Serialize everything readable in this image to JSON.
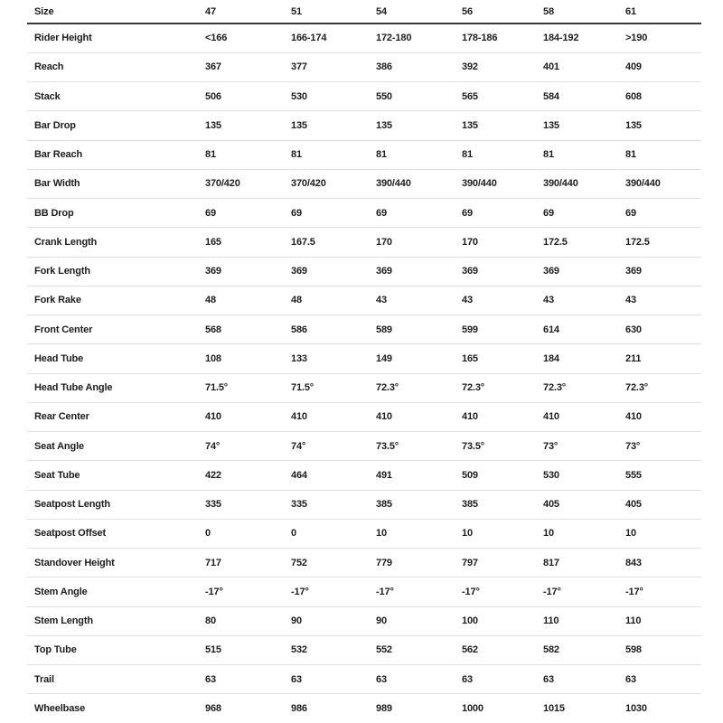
{
  "colors": {
    "background": "#ffffff",
    "text": "#1d1d1d",
    "header_rule": "#383838",
    "row_rule": "#e1e1e1"
  },
  "chart_data": {
    "type": "table",
    "columns": [
      "Size",
      "47",
      "51",
      "54",
      "56",
      "58",
      "61"
    ],
    "rows": [
      {
        "label": "Rider Height",
        "values": [
          "<166",
          "166-174",
          "172-180",
          "178-186",
          "184-192",
          ">190"
        ]
      },
      {
        "label": "Reach",
        "values": [
          "367",
          "377",
          "386",
          "392",
          "401",
          "409"
        ]
      },
      {
        "label": "Stack",
        "values": [
          "506",
          "530",
          "550",
          "565",
          "584",
          "608"
        ]
      },
      {
        "label": "Bar Drop",
        "values": [
          "135",
          "135",
          "135",
          "135",
          "135",
          "135"
        ]
      },
      {
        "label": "Bar Reach",
        "values": [
          "81",
          "81",
          "81",
          "81",
          "81",
          "81"
        ]
      },
      {
        "label": "Bar Width",
        "values": [
          "370/420",
          "370/420",
          "390/440",
          "390/440",
          "390/440",
          "390/440"
        ]
      },
      {
        "label": "BB Drop",
        "values": [
          "69",
          "69",
          "69",
          "69",
          "69",
          "69"
        ]
      },
      {
        "label": "Crank Length",
        "values": [
          "165",
          "167.5",
          "170",
          "170",
          "172.5",
          "172.5"
        ]
      },
      {
        "label": "Fork Length",
        "values": [
          "369",
          "369",
          "369",
          "369",
          "369",
          "369"
        ]
      },
      {
        "label": "Fork Rake",
        "values": [
          "48",
          "48",
          "43",
          "43",
          "43",
          "43"
        ]
      },
      {
        "label": "Front Center",
        "values": [
          "568",
          "586",
          "589",
          "599",
          "614",
          "630"
        ]
      },
      {
        "label": "Head Tube",
        "values": [
          "108",
          "133",
          "149",
          "165",
          "184",
          "211"
        ]
      },
      {
        "label": "Head Tube Angle",
        "values": [
          "71.5°",
          "71.5°",
          "72.3°",
          "72.3°",
          "72.3°",
          "72.3°"
        ]
      },
      {
        "label": "Rear Center",
        "values": [
          "410",
          "410",
          "410",
          "410",
          "410",
          "410"
        ]
      },
      {
        "label": "Seat Angle",
        "values": [
          "74°",
          "74°",
          "73.5°",
          "73.5°",
          "73°",
          "73°"
        ]
      },
      {
        "label": "Seat Tube",
        "values": [
          "422",
          "464",
          "491",
          "509",
          "530",
          "555"
        ]
      },
      {
        "label": "Seatpost Length",
        "values": [
          "335",
          "335",
          "385",
          "385",
          "405",
          "405"
        ]
      },
      {
        "label": "Seatpost Offset",
        "values": [
          "0",
          "0",
          "10",
          "10",
          "10",
          "10"
        ]
      },
      {
        "label": "Standover Height",
        "values": [
          "717",
          "752",
          "779",
          "797",
          "817",
          "843"
        ]
      },
      {
        "label": "Stem Angle",
        "values": [
          "-17°",
          "-17°",
          "-17°",
          "-17°",
          "-17°",
          "-17°"
        ]
      },
      {
        "label": "Stem Length",
        "values": [
          "80",
          "90",
          "90",
          "100",
          "110",
          "110"
        ]
      },
      {
        "label": "Top Tube",
        "values": [
          "515",
          "532",
          "552",
          "562",
          "582",
          "598"
        ]
      },
      {
        "label": "Trail",
        "values": [
          "63",
          "63",
          "63",
          "63",
          "63",
          "63"
        ]
      },
      {
        "label": "Wheelbase",
        "values": [
          "968",
          "986",
          "989",
          "1000",
          "1015",
          "1030"
        ]
      }
    ]
  }
}
